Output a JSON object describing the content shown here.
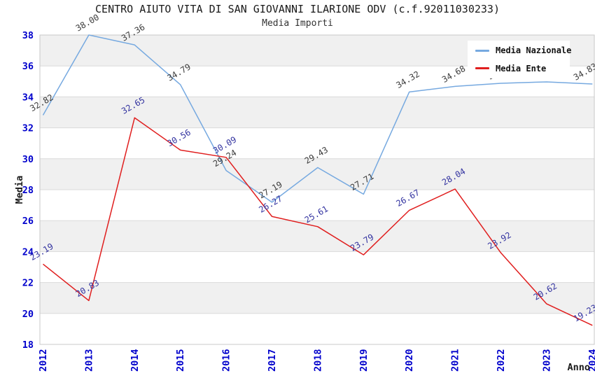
{
  "title": "CENTRO AIUTO VITA DI SAN GIOVANNI ILARIONE ODV (c.f.92011030233)",
  "subtitle": "Media Importi",
  "axes": {
    "y_label": "Media",
    "x_label": "Anno",
    "y_ticks": [
      18,
      20,
      22,
      24,
      26,
      28,
      30,
      32,
      34,
      36,
      38
    ],
    "x_ticks": [
      "2012",
      "2013",
      "2014",
      "2015",
      "2016",
      "2017",
      "2018",
      "2019",
      "2020",
      "2021",
      "2022",
      "2023",
      "2024"
    ]
  },
  "colors": {
    "tick_label": "#0000CC",
    "axis_label": "#1a1a1a",
    "band_fill": "#F0F0F0",
    "gridline": "#DADADA",
    "plot_border": "#C8C8C8",
    "title": "#1a1a1a"
  },
  "chart_data": {
    "type": "line",
    "title": "CENTRO AIUTO VITA DI SAN GIOVANNI ILARIONE ODV (c.f.92011030233)",
    "subtitle": "Media Importi",
    "xlabel": "Anno",
    "ylabel": "Media",
    "ylim": [
      18,
      38
    ],
    "grid": true,
    "legend_position": "top-right",
    "categories": [
      "2012",
      "2013",
      "2014",
      "2015",
      "2016",
      "2017",
      "2018",
      "2019",
      "2020",
      "2021",
      "2022",
      "2023",
      "2024"
    ],
    "series": [
      {
        "name": "Media Nazionale",
        "color": "#76A9E0",
        "label_color": "#3C3C3C",
        "values": [
          32.82,
          38.0,
          37.36,
          34.79,
          29.24,
          27.19,
          29.43,
          27.71,
          34.32,
          34.68,
          34.88,
          34.97,
          34.83
        ],
        "labels_hidden_by_legend": [
          "2022",
          "2023"
        ]
      },
      {
        "name": "Media Ente",
        "color": "#E01E1E",
        "label_color": "#3333A0",
        "values": [
          23.19,
          20.83,
          32.65,
          30.56,
          30.09,
          26.27,
          25.61,
          23.79,
          26.67,
          28.04,
          23.92,
          20.62,
          19.23
        ]
      }
    ]
  }
}
